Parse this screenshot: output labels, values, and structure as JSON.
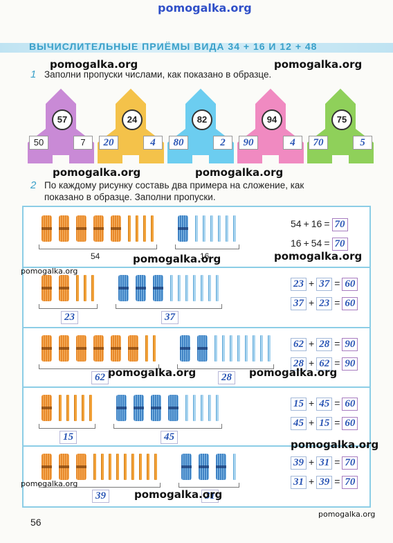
{
  "watermark_top": "pomogalka.org",
  "header": {
    "title": "ВЫЧИСЛИТЕЛЬНЫЕ ПРИЁМЫ ВИДА 34 + 16 И 12 + 48"
  },
  "exercise1": {
    "number": "1",
    "text": "Заполни пропуски числами, как показано в образце.",
    "rockets": [
      {
        "color": "#c98ad6",
        "top": "57",
        "left": "50",
        "right": "7"
      },
      {
        "color": "#f4c24a",
        "top": "24",
        "left": "20",
        "right": "4"
      },
      {
        "color": "#6ccdf0",
        "top": "82",
        "left": "80",
        "right": "2"
      },
      {
        "color": "#f08ac1",
        "top": "94",
        "left": "90",
        "right": "4"
      },
      {
        "color": "#8fd05a",
        "top": "75",
        "left": "70",
        "right": "5"
      }
    ]
  },
  "exercise2": {
    "number": "2",
    "text_line1": "По каждому рисунку составь два примера на сложение, как",
    "text_line2": "показано в образце. Заполни пропуски.",
    "rows": [
      {
        "left_count": "54",
        "right_count": "16",
        "eq1": [
          "54",
          "16",
          "70"
        ],
        "eq2": [
          "16",
          "54",
          "70"
        ]
      },
      {
        "left_count": "23",
        "right_count": "37",
        "eq1": [
          "23",
          "37",
          "60"
        ],
        "eq2": [
          "37",
          "23",
          "60"
        ]
      },
      {
        "left_count": "62",
        "right_count": "28",
        "eq1": [
          "62",
          "28",
          "90"
        ],
        "eq2": [
          "28",
          "62",
          "90"
        ]
      },
      {
        "left_count": "15",
        "right_count": "45",
        "eq1": [
          "15",
          "45",
          "60"
        ],
        "eq2": [
          "45",
          "15",
          "60"
        ]
      },
      {
        "left_count": "39",
        "right_count": "31",
        "eq1": [
          "39",
          "31",
          "70"
        ],
        "eq2": [
          "31",
          "39",
          "70"
        ]
      }
    ]
  },
  "symbols": {
    "plus": "+",
    "equals": "="
  },
  "watermarks": [
    "pomogalka.org",
    "pomogalka.org",
    "pomogalka.org",
    "pomogalka.org",
    "pomogalka.org",
    "pomogalka.org",
    "pomogalka.org",
    "pomogalka.org",
    "pomogalka.org",
    "pomogalka.org",
    "pomogalka.org",
    "pomogalka.org"
  ],
  "page_number": "56"
}
